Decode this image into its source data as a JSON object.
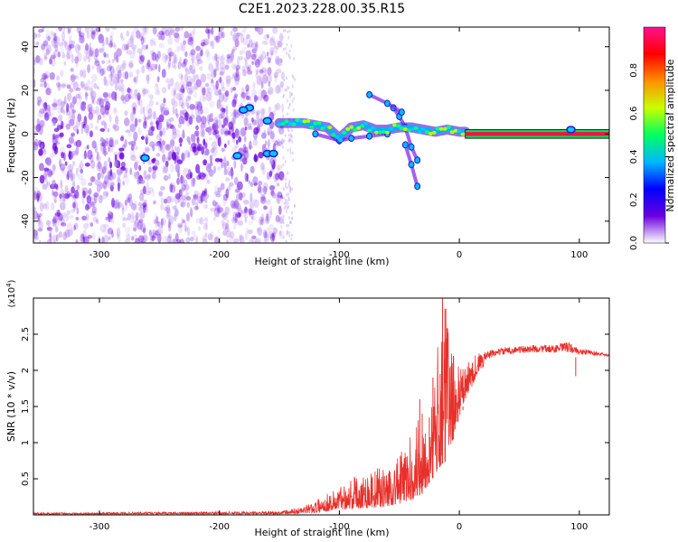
{
  "title": "C2E1.2023.228.00.35.R15",
  "colors": {
    "snr_line": "#e8302a",
    "dots": "#6a00e0",
    "ridge": "#00b0ff"
  },
  "chart_data": [
    {
      "type": "heatmap",
      "name": "spectrogram",
      "xlabel": "Height of straight line (km)",
      "ylabel": "Frequency (Hz)",
      "xlim": [
        -355,
        125
      ],
      "ylim": [
        -50,
        49
      ],
      "xticks": [
        -300,
        -200,
        -100,
        0,
        100
      ],
      "xtick_labels": [
        "-300",
        "-200",
        "-100",
        "0",
        "100"
      ],
      "yticks": [
        -40,
        -20,
        0,
        20,
        40
      ],
      "ytick_labels": [
        "-40",
        "-20",
        "0",
        "20",
        "40"
      ],
      "colorbar": {
        "label": "Normalized spectral amplitude",
        "range": [
          0,
          1
        ],
        "ticks": [
          0,
          0.2,
          0.4,
          0.6,
          0.8
        ],
        "tick_labels": [
          "0.0",
          "0.2",
          "0.4",
          "0.6",
          "0.8"
        ],
        "colormap": [
          "#ffffff",
          "#6a00e0",
          "#0000ff",
          "#00b8ff",
          "#00ff60",
          "#c8ff00",
          "#ff9000",
          "#ff0000",
          "#ff1090"
        ]
      },
      "noise_region_x": [
        -355,
        -147
      ],
      "carrier": {
        "x": [
          5,
          125
        ],
        "y": 0,
        "half_width_hz": 2
      },
      "ridge": {
        "x": [
          -150,
          -140,
          -130,
          -120,
          -110,
          -100,
          -90,
          -80,
          -70,
          -60,
          -50,
          -40,
          -30,
          -20,
          -10,
          0,
          5
        ],
        "y": [
          5,
          5,
          5,
          4,
          3,
          -2,
          3,
          4,
          2,
          2,
          3,
          3,
          2,
          1,
          2,
          1,
          1
        ]
      },
      "features": [
        {
          "x": [
            -55,
            -50,
            -45,
            -40,
            -35
          ],
          "y": [
            12,
            8,
            3,
            -6,
            -12
          ]
        },
        {
          "x": [
            -45,
            -40,
            -35
          ],
          "y": [
            -5,
            -14,
            -24
          ]
        },
        {
          "x": [
            -75,
            -60,
            -48
          ],
          "y": [
            18,
            14,
            10
          ]
        },
        {
          "x": [
            -120,
            -100,
            -90,
            -75,
            -60
          ],
          "y": [
            0,
            -3,
            -2,
            -1,
            0
          ]
        }
      ],
      "spots": [
        {
          "x": -175,
          "y": 12
        },
        {
          "x": -160,
          "y": 6
        },
        {
          "x": -180,
          "y": 11
        },
        {
          "x": -262,
          "y": -11
        },
        {
          "x": -185,
          "y": -10
        },
        {
          "x": -160,
          "y": -9
        },
        {
          "x": -155,
          "y": -9
        },
        {
          "x": 93,
          "y": 2
        }
      ]
    },
    {
      "type": "line",
      "name": "snr",
      "xlabel": "Height of straight line (km)",
      "ylabel": "SNR (10 * v/v)",
      "scale_label": "(x10",
      "scale_exponent": "4",
      "scale_suffix": ")",
      "xlim": [
        -355,
        125
      ],
      "ylim": [
        0,
        3.0
      ],
      "xticks": [
        -300,
        -200,
        -100,
        0,
        100
      ],
      "xtick_labels": [
        "-300",
        "-200",
        "-100",
        "0",
        "100"
      ],
      "yticks": [
        0.5,
        1.0,
        1.5,
        2.0,
        2.5
      ],
      "ytick_labels": [
        "0.5",
        "1",
        "1.5",
        "2",
        "2.5"
      ],
      "envelope": {
        "x": [
          -355,
          -150,
          -130,
          -120,
          -110,
          -100,
          -90,
          -80,
          -70,
          -60,
          -50,
          -40,
          -30,
          -25,
          -20,
          -15,
          -10,
          -5,
          0,
          5,
          10,
          15,
          20,
          30,
          40,
          60,
          80,
          90,
          100,
          110,
          125
        ],
        "low": [
          0.01,
          0.01,
          0.02,
          0.03,
          0.05,
          0.07,
          0.08,
          0.09,
          0.1,
          0.12,
          0.15,
          0.2,
          0.3,
          0.45,
          0.55,
          0.7,
          0.75,
          1.05,
          1.35,
          1.6,
          1.75,
          1.95,
          2.05,
          2.15,
          2.18,
          2.2,
          2.2,
          2.18,
          2.18,
          2.18,
          2.18
        ],
        "high": [
          0.03,
          0.05,
          0.12,
          0.2,
          0.3,
          0.4,
          0.55,
          0.6,
          0.65,
          0.65,
          0.85,
          1.1,
          1.6,
          1.3,
          1.9,
          3.0,
          2.9,
          2.2,
          2.05,
          2.05,
          2.2,
          2.25,
          2.25,
          2.3,
          2.32,
          2.35,
          2.35,
          2.4,
          2.3,
          2.28,
          2.22
        ]
      },
      "spikes": [
        {
          "x": -33,
          "y": 1.6
        },
        {
          "x": -31,
          "y": 1.4
        },
        {
          "x": -25,
          "y": 1.35
        },
        {
          "x": -22,
          "y": 1.9
        },
        {
          "x": -16,
          "y": 1.95
        },
        {
          "x": -14,
          "y": 3.0
        },
        {
          "x": -12,
          "y": 2.85
        },
        {
          "x": -5,
          "y": 2.2
        },
        {
          "x": 3,
          "y": 1.45
        },
        {
          "x": 97,
          "y": 1.92
        }
      ]
    }
  ]
}
